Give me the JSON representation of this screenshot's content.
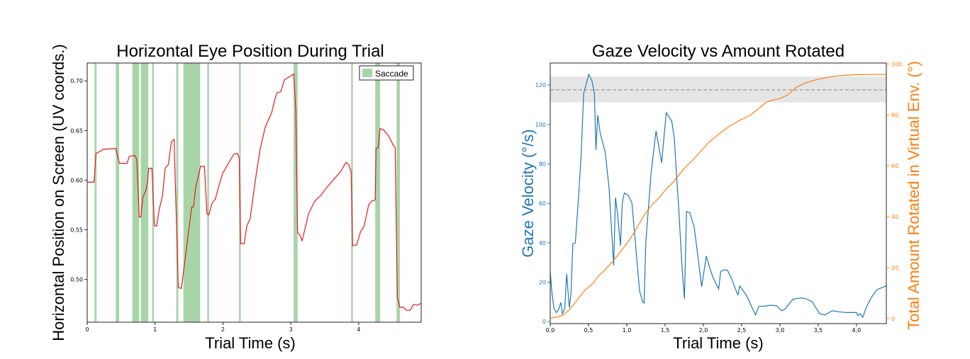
{
  "chart_data": [
    {
      "type": "line",
      "title": "Horizontal Eye Position During Trial",
      "xlabel": "Trial Time (s)",
      "ylabel": "Horizontal Position on Screen (UV coords.)",
      "xlim": [
        0,
        4.92
      ],
      "ylim": [
        0.457,
        0.718
      ],
      "xticks": [
        0,
        1,
        2,
        3,
        4
      ],
      "xtick_labels": [
        "0",
        "1",
        "2",
        "3",
        "4"
      ],
      "yticks": [
        0.5,
        0.55,
        0.6,
        0.65,
        0.7
      ],
      "ytick_labels": [
        "0.50",
        "0.55",
        "0.60",
        "0.65",
        "0.70"
      ],
      "legend": {
        "label": "Saccade",
        "placement": "top-right"
      },
      "colors": {
        "line": "#e31a1c",
        "saccade": "#a8d5a8"
      },
      "saccades": [
        [
          0.108,
          0.138
        ],
        [
          0.42,
          0.47
        ],
        [
          0.665,
          0.766
        ],
        [
          0.789,
          0.9
        ],
        [
          0.957,
          0.983
        ],
        [
          1.312,
          1.342
        ],
        [
          1.417,
          1.664
        ],
        [
          1.768,
          1.794
        ],
        [
          2.236,
          2.262
        ],
        [
          3.04,
          3.1
        ],
        [
          3.888,
          3.914
        ],
        [
          4.243,
          4.314
        ],
        [
          4.557,
          4.606
        ]
      ],
      "series": [
        {
          "name": "Eye position",
          "x": [
            0,
            0.1,
            0.13,
            0.19,
            0.23,
            0.42,
            0.45,
            0.475,
            0.587,
            0.62,
            0.7,
            0.73,
            0.766,
            0.79,
            0.82,
            0.867,
            0.89,
            0.905,
            0.953,
            0.99,
            1.024,
            1.054,
            1.11,
            1.148,
            1.196,
            1.241,
            1.28,
            1.342,
            1.387,
            1.428,
            1.54,
            1.566,
            1.596,
            1.67,
            1.727,
            1.764,
            1.79,
            1.839,
            1.888,
            1.951,
            1.996,
            2.082,
            2.157,
            2.213,
            2.239,
            2.262,
            2.314,
            2.351,
            2.4,
            2.467,
            2.505,
            2.55,
            2.625,
            2.718,
            2.755,
            2.793,
            2.85,
            2.905,
            2.998,
            3.043,
            3.073,
            3.099,
            3.129,
            3.166,
            3.26,
            3.353,
            3.447,
            3.52,
            3.634,
            3.727,
            3.813,
            3.858,
            3.888,
            3.91,
            3.97,
            4.026,
            4.08,
            4.146,
            4.19,
            4.243,
            4.254,
            4.288,
            4.314,
            4.36,
            4.437,
            4.51,
            4.537,
            4.568,
            4.606,
            4.66,
            4.7,
            4.755,
            4.81,
            4.867,
            4.916
          ],
          "y": [
            0.598,
            0.598,
            0.627,
            0.629,
            0.631,
            0.632,
            0.624,
            0.617,
            0.617,
            0.624,
            0.625,
            0.621,
            0.563,
            0.563,
            0.583,
            0.59,
            0.599,
            0.612,
            0.612,
            0.554,
            0.554,
            0.568,
            0.585,
            0.612,
            0.616,
            0.639,
            0.641,
            0.492,
            0.491,
            0.513,
            0.573,
            0.573,
            0.592,
            0.614,
            0.614,
            0.566,
            0.565,
            0.577,
            0.581,
            0.597,
            0.607,
            0.617,
            0.626,
            0.627,
            0.622,
            0.536,
            0.536,
            0.554,
            0.561,
            0.595,
            0.613,
            0.632,
            0.654,
            0.668,
            0.679,
            0.688,
            0.689,
            0.701,
            0.705,
            0.707,
            0.67,
            0.547,
            0.545,
            0.539,
            0.566,
            0.579,
            0.585,
            0.592,
            0.601,
            0.608,
            0.618,
            0.615,
            0.608,
            0.534,
            0.535,
            0.548,
            0.554,
            0.575,
            0.579,
            0.58,
            0.632,
            0.633,
            0.652,
            0.651,
            0.645,
            0.635,
            0.633,
            0.482,
            0.472,
            0.472,
            0.469,
            0.469,
            0.475,
            0.474,
            0.476
          ]
        }
      ]
    },
    {
      "type": "line",
      "title": "Gaze Velocity vs Amount Rotated",
      "xlabel": "Trial Time (s)",
      "ylabel": "Gaze Velocity (°/s)",
      "ylabel_right": "Total Amount Rotated in Virtual Env. (°)",
      "xlim": [
        0,
        4.39
      ],
      "ylim": [
        -1,
        131.2
      ],
      "ylim_right": [
        -2,
        100.4
      ],
      "xticks": [
        0,
        0.5,
        1,
        1.5,
        2,
        2.5,
        3,
        3.5,
        4
      ],
      "xtick_labels": [
        "0,0",
        "0,5",
        "1,0",
        "1,5",
        "2,0",
        "2,5",
        "3,0",
        "3,5",
        "4,0"
      ],
      "yticks": [
        0,
        20,
        40,
        60,
        80,
        100,
        120
      ],
      "ytick_labels": [
        "0",
        "20",
        "40",
        "60",
        "80",
        "100",
        "120"
      ],
      "yticks_right": [
        0,
        20,
        40,
        60,
        80,
        100
      ],
      "ytick_labels_right": [
        "0",
        "20",
        "40",
        "60",
        "80",
        "100"
      ],
      "band": {
        "low": 111.2,
        "high": 124.3,
        "line": 117.6
      },
      "colors": {
        "velocity": "#1f77b4",
        "rotation": "#ff7f0e",
        "band": "#e5e5e5"
      },
      "series": [
        {
          "name": "Gaze velocity",
          "axis": "left",
          "x": [
            0,
            0.023,
            0.05,
            0.08,
            0.106,
            0.139,
            0.159,
            0.189,
            0.215,
            0.249,
            0.272,
            0.295,
            0.328,
            0.371,
            0.404,
            0.437,
            0.504,
            0.547,
            0.577,
            0.597,
            0.62,
            0.653,
            0.719,
            0.769,
            0.829,
            0.852,
            0.878,
            0.918,
            0.941,
            0.968,
            1.017,
            1.067,
            1.1,
            1.167,
            1.206,
            1.226,
            1.249,
            1.316,
            1.382,
            1.455,
            1.515,
            1.587,
            1.62,
            1.653,
            1.68,
            1.72,
            1.753,
            1.78,
            1.823,
            1.88,
            1.92,
            1.978,
            2.038,
            2.094,
            2.127,
            2.2,
            2.227,
            2.27,
            2.316,
            2.37,
            2.416,
            2.452,
            2.476,
            2.565,
            2.681,
            2.724,
            2.807,
            2.873,
            2.956,
            3.022,
            3.072,
            3.105,
            3.171,
            3.271,
            3.337,
            3.42,
            3.519,
            3.586,
            3.685,
            3.768,
            3.867,
            3.934,
            4.0,
            4.017,
            4.05,
            4.083,
            4.133,
            4.2,
            4.266,
            4.39
          ],
          "y": [
            25.4,
            14.4,
            6.5,
            4.6,
            5.9,
            9.8,
            4.0,
            6.5,
            24.2,
            7.1,
            14.4,
            39.4,
            40.0,
            63.9,
            84.6,
            115.8,
            125.5,
            121.9,
            115.8,
            87.1,
            104.8,
            95.6,
            85.8,
            67.5,
            28.4,
            62.9,
            55.3,
            38.5,
            60.2,
            65.3,
            64.1,
            60.2,
            45.5,
            15.6,
            10.1,
            9.5,
            40.7,
            74.8,
            96.8,
            80.6,
            106.0,
            101.7,
            93.2,
            72.4,
            56.5,
            28.4,
            11.6,
            55.9,
            55.3,
            48.0,
            35.8,
            17.7,
            33.3,
            26.0,
            22.3,
            16.6,
            25.4,
            26.3,
            26.0,
            21.7,
            16.8,
            13.6,
            18.1,
            13.2,
            3.4,
            7.7,
            7.9,
            8.3,
            8.1,
            5.5,
            6.5,
            8.3,
            11.4,
            12.0,
            11.7,
            10.1,
            4.0,
            3.4,
            5.5,
            5.0,
            4.6,
            4.6,
            4.6,
            3.1,
            4.0,
            2.2,
            7.7,
            12.6,
            16.2,
            18.1
          ]
        },
        {
          "name": "Amount rotated",
          "axis": "right",
          "x": [
            0,
            0.09,
            0.17,
            0.255,
            0.355,
            0.454,
            0.553,
            0.62,
            0.719,
            0.819,
            0.918,
            1.017,
            1.117,
            1.216,
            1.316,
            1.415,
            1.515,
            1.614,
            1.713,
            1.78,
            1.879,
            1.978,
            2.078,
            2.21,
            2.343,
            2.476,
            2.608,
            2.708,
            2.824,
            2.906,
            3.006,
            3.105,
            3.205,
            3.337,
            3.47,
            3.602,
            3.735,
            3.868,
            4.0,
            4.2,
            4.39
          ],
          "y": [
            0.1,
            0.6,
            1.4,
            3.6,
            7.4,
            11.2,
            13.6,
            16.4,
            19.2,
            22.5,
            26.3,
            30.1,
            34.8,
            40.1,
            44.3,
            47.2,
            50.9,
            53.8,
            57.6,
            59.9,
            62.8,
            66.1,
            69.4,
            72.7,
            75.6,
            77.9,
            79.8,
            82.2,
            85.0,
            85.8,
            86.5,
            87.9,
            90.7,
            92.6,
            93.8,
            94.7,
            95.3,
            95.6,
            95.8,
            95.9,
            95.9
          ]
        }
      ]
    }
  ]
}
